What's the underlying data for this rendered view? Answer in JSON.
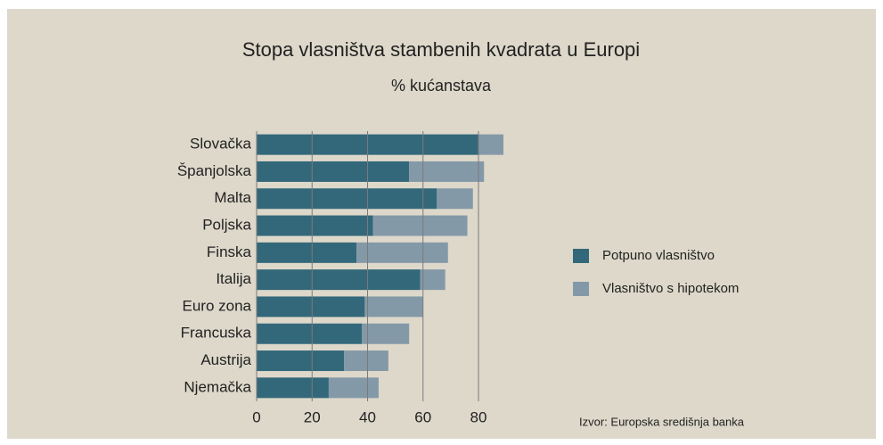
{
  "chart_data": {
    "type": "stacked_barh",
    "title": "Stopa vlasništva stambenih kvadrata u Europi",
    "subtitle": "% kućanstava",
    "categories": [
      "Slovačka",
      "Španjolska",
      "Malta",
      "Poljska",
      "Finska",
      "Italija",
      "Euro zona",
      "Francuska",
      "Austrija",
      "Njemačka"
    ],
    "series": [
      {
        "name": "Potpuno vlasništvo",
        "color": "#33687a",
        "values": [
          80,
          55,
          65,
          42,
          36,
          59,
          39,
          38,
          31.5,
          26
        ]
      },
      {
        "name": "Vlasništvo s hipotekom",
        "color": "#8499a8",
        "values": [
          9,
          27,
          13,
          34,
          33,
          9,
          21,
          17,
          16,
          18
        ]
      }
    ],
    "xlim": [
      0,
      90
    ],
    "xticks": [
      0,
      20,
      40,
      60,
      80
    ],
    "grid": true,
    "legend": "right",
    "source": "Izvor: Europska središnja banka"
  }
}
